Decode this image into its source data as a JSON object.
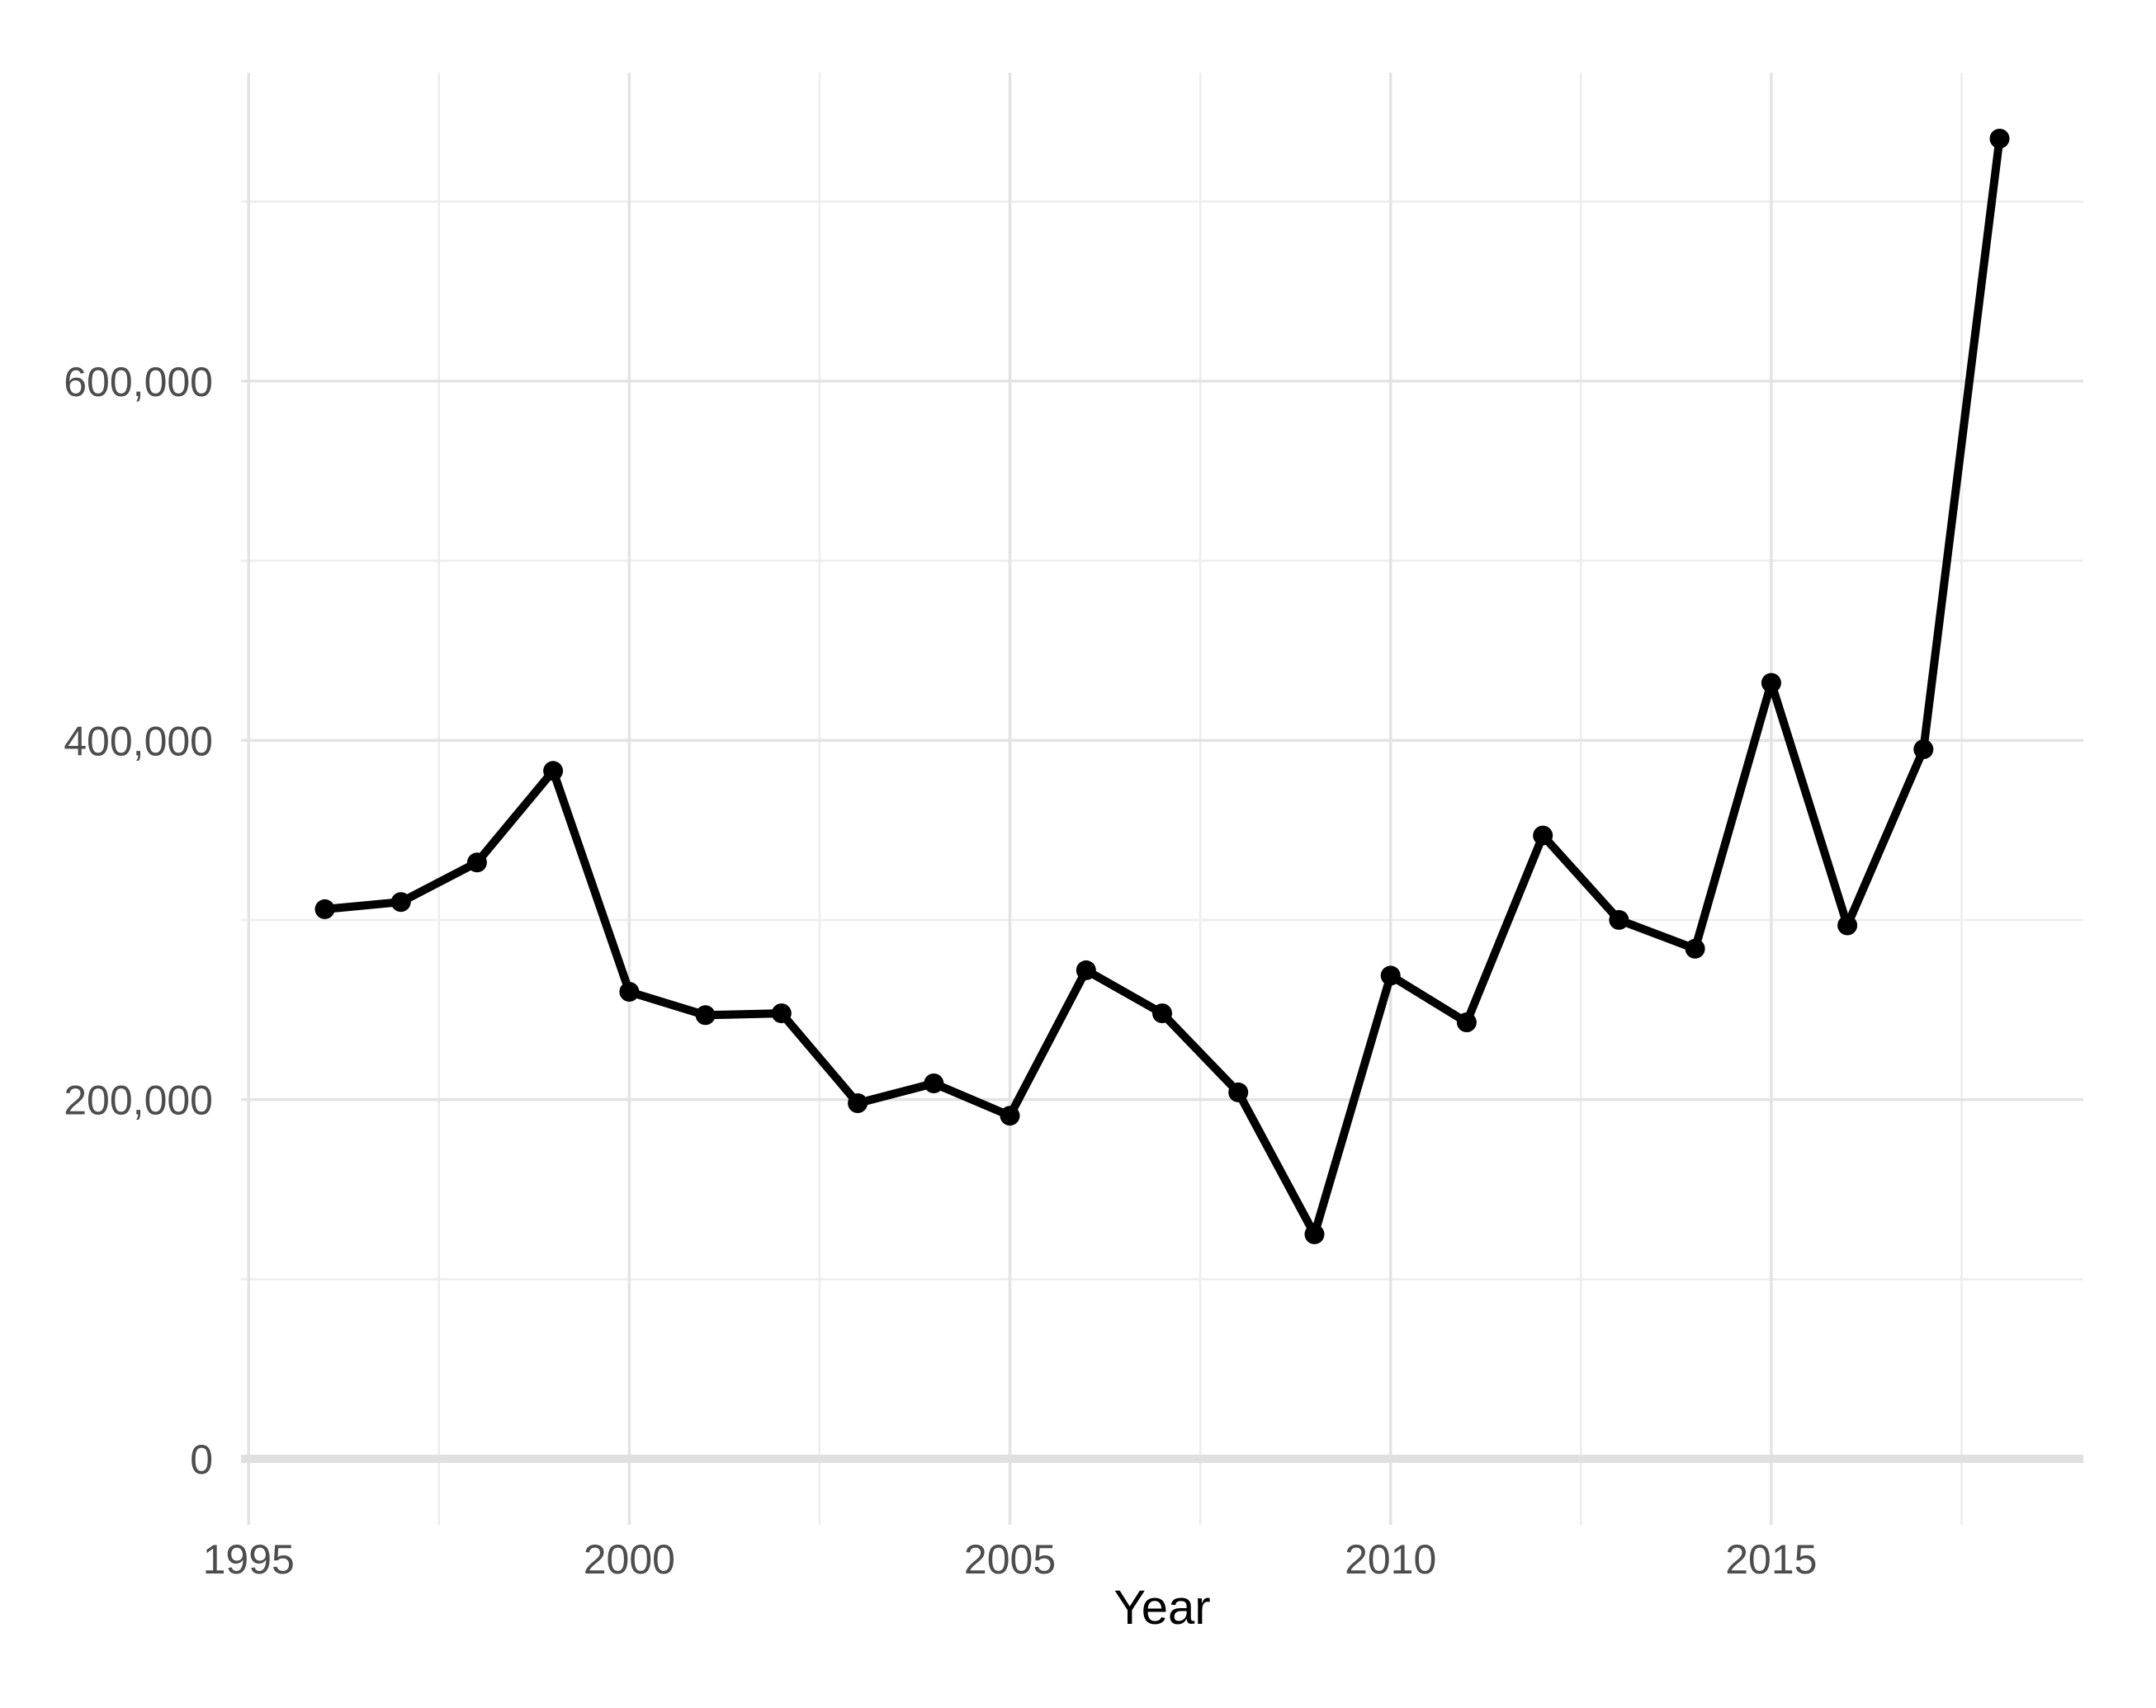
{
  "figure": {
    "background": "#ffffff",
    "title": ""
  },
  "chart_data": {
    "type": "line",
    "title": "",
    "xlabel": "Year",
    "ylabel": "",
    "x": [
      1996,
      1997,
      1998,
      1999,
      2000,
      2001,
      2002,
      2003,
      2004,
      2005,
      2006,
      2007,
      2008,
      2009,
      2010,
      2011,
      2012,
      2013,
      2014,
      2015,
      2016,
      2017,
      2018
    ],
    "values": [
      306000,
      310000,
      332000,
      383000,
      260000,
      247000,
      248000,
      198000,
      209000,
      191000,
      272000,
      248000,
      204000,
      125000,
      269000,
      243000,
      347000,
      300000,
      284000,
      432000,
      297000,
      395000,
      735000
    ],
    "xlim": [
      1994.9,
      2019.1
    ],
    "ylim": [
      -36750,
      771750
    ],
    "x_ticks": {
      "values": [
        1995,
        2000,
        2005,
        2010,
        2015
      ],
      "labels": [
        "1995",
        "2000",
        "2005",
        "2010",
        "2015"
      ]
    },
    "x_minor_ticks": [
      1997.5,
      2002.5,
      2007.5,
      2012.5,
      2017.5
    ],
    "y_ticks": {
      "values": [
        0,
        200000,
        400000,
        600000
      ],
      "labels": [
        "0",
        "200,000",
        "400,000",
        "600,000"
      ]
    },
    "y_minor_ticks": [
      100000,
      300000,
      500000,
      700000
    ],
    "grid": true,
    "legend": false,
    "colors": {
      "line": "#000000",
      "point": "#000000",
      "grid_major": "#e3e3e3",
      "grid_minor": "#ededed",
      "zero_baseline": "#e0e0e0",
      "tick_label": "#4d4d4d",
      "axis_title": "#000000",
      "background": "#ffffff"
    },
    "line_width": 10,
    "point_radius": 12
  }
}
